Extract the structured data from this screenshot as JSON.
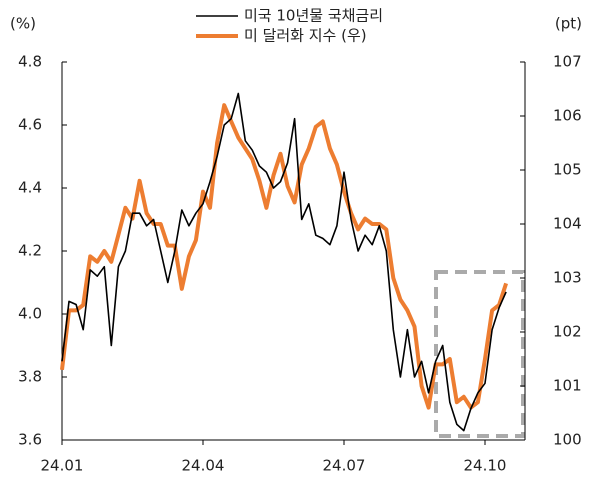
{
  "chart_data": {
    "type": "line",
    "legend": "top",
    "y_label": "(%)",
    "y2_label": "(pt)",
    "categories": [
      "24.01",
      null,
      null,
      null,
      null,
      null,
      null,
      null,
      null,
      null,
      null,
      null,
      null,
      null,
      null,
      null,
      null,
      null,
      null,
      null,
      "24.04",
      null,
      null,
      null,
      null,
      null,
      null,
      null,
      null,
      null,
      null,
      null,
      null,
      null,
      null,
      null,
      null,
      null,
      null,
      null,
      "24.07",
      null,
      null,
      null,
      null,
      null,
      null,
      null,
      null,
      null,
      null,
      null,
      null,
      null,
      null,
      null,
      null,
      null,
      null,
      null,
      "24.10",
      null,
      null,
      null
    ],
    "series": [
      {
        "name": "미국 10년물 국채금리",
        "color": "#000000",
        "axis": "y",
        "values": [
          3.85,
          4.04,
          4.03,
          3.95,
          4.14,
          4.12,
          4.15,
          3.9,
          4.15,
          4.2,
          4.32,
          4.32,
          4.28,
          4.3,
          4.2,
          4.1,
          4.2,
          4.33,
          4.28,
          4.32,
          4.35,
          4.42,
          4.5,
          4.6,
          4.62,
          4.7,
          4.55,
          4.52,
          4.47,
          4.45,
          4.4,
          4.42,
          4.48,
          4.62,
          4.3,
          4.35,
          4.25,
          4.24,
          4.22,
          4.28,
          4.45,
          4.3,
          4.2,
          4.25,
          4.22,
          4.28,
          4.2,
          3.95,
          3.8,
          3.95,
          3.8,
          3.85,
          3.75,
          3.85,
          3.9,
          3.72,
          3.65,
          3.63,
          3.7,
          3.75,
          3.78,
          3.95,
          4.02,
          4.07
        ]
      },
      {
        "name": "미 달러화 지수 (우)",
        "color": "#ed7d31",
        "axis": "y2",
        "values": [
          101.3,
          102.4,
          102.4,
          102.5,
          103.4,
          103.3,
          103.5,
          103.3,
          103.8,
          104.3,
          104.1,
          104.8,
          104.2,
          104.0,
          104.0,
          103.6,
          103.6,
          102.8,
          103.4,
          103.7,
          104.6,
          104.3,
          105.5,
          106.2,
          105.9,
          105.6,
          105.4,
          105.2,
          104.8,
          104.3,
          104.9,
          105.3,
          104.7,
          104.4,
          105.1,
          105.4,
          105.8,
          105.9,
          105.4,
          105.1,
          104.6,
          104.2,
          103.9,
          104.1,
          104.0,
          104.0,
          103.9,
          103.0,
          102.6,
          102.4,
          102.1,
          101.0,
          100.6,
          101.4,
          101.4,
          101.5,
          100.7,
          100.8,
          100.6,
          100.7,
          101.5,
          102.4,
          102.5,
          102.9
        ]
      }
    ],
    "ylim": [
      3.6,
      4.8
    ],
    "yticks": [
      3.6,
      3.8,
      {
        "value": 4,
        "label": "4.0"
      },
      4.2,
      4.4,
      4.6,
      4.8
    ],
    "y2lim": [
      100,
      107
    ],
    "y2ticks": [
      100,
      101,
      102,
      103,
      104,
      105,
      106,
      107
    ]
  }
}
